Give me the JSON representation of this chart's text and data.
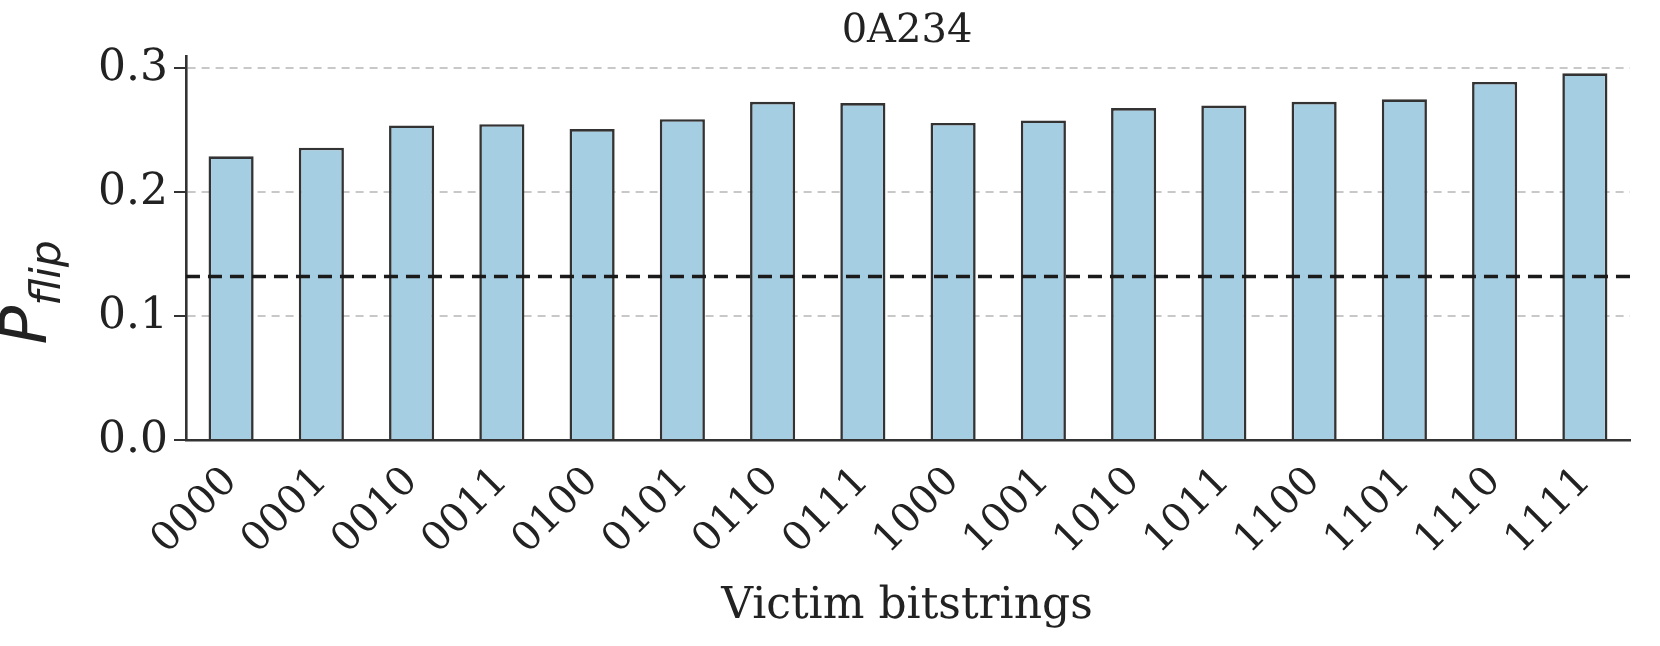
{
  "chart_data": {
    "type": "bar",
    "title": "0A234",
    "xlabel": "Victim bitstrings",
    "ylabel": "P$_{flip}$",
    "categories": [
      "0000",
      "0001",
      "0010",
      "0011",
      "0100",
      "0101",
      "0110",
      "0111",
      "1000",
      "1001",
      "1010",
      "1011",
      "1100",
      "1101",
      "1110",
      "1111"
    ],
    "values": [
      0.229,
      0.236,
      0.254,
      0.255,
      0.251,
      0.259,
      0.273,
      0.272,
      0.256,
      0.258,
      0.268,
      0.27,
      0.273,
      0.275,
      0.289,
      0.296
    ],
    "color": "#a6cee3",
    "ylim": [
      0,
      0.31
    ],
    "yticks": [
      {
        "value": 0,
        "label": "0.0"
      },
      0.1,
      0.2,
      0.3
    ],
    "grid": "y",
    "ref_lines": [
      {
        "axis": "y",
        "value": 0.132,
        "line_style": "dashed",
        "color": "#1a1a1a"
      }
    ]
  }
}
